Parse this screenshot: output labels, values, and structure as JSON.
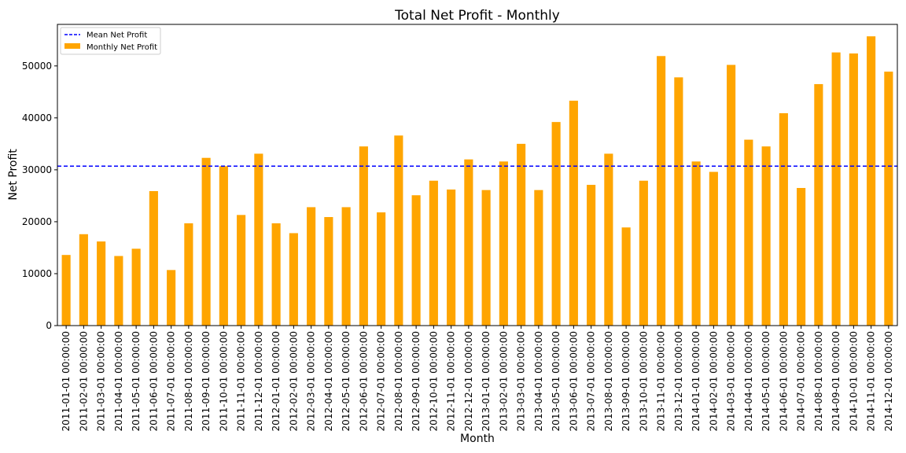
{
  "chart_data": {
    "type": "bar",
    "title": "Total Net Profit - Monthly",
    "xlabel": "Month",
    "ylabel": "Net Profit",
    "ylim": [
      0,
      58000
    ],
    "yticks": [
      0,
      10000,
      20000,
      30000,
      40000,
      50000
    ],
    "grid": false,
    "legend_position": "top-left",
    "categories": [
      "2011-01-01 00:00:00",
      "2011-02-01 00:00:00",
      "2011-03-01 00:00:00",
      "2011-04-01 00:00:00",
      "2011-05-01 00:00:00",
      "2011-06-01 00:00:00",
      "2011-07-01 00:00:00",
      "2011-08-01 00:00:00",
      "2011-09-01 00:00:00",
      "2011-10-01 00:00:00",
      "2011-11-01 00:00:00",
      "2011-12-01 00:00:00",
      "2012-01-01 00:00:00",
      "2012-02-01 00:00:00",
      "2012-03-01 00:00:00",
      "2012-04-01 00:00:00",
      "2012-05-01 00:00:00",
      "2012-06-01 00:00:00",
      "2012-07-01 00:00:00",
      "2012-08-01 00:00:00",
      "2012-09-01 00:00:00",
      "2012-10-01 00:00:00",
      "2012-11-01 00:00:00",
      "2012-12-01 00:00:00",
      "2013-01-01 00:00:00",
      "2013-02-01 00:00:00",
      "2013-03-01 00:00:00",
      "2013-04-01 00:00:00",
      "2013-05-01 00:00:00",
      "2013-06-01 00:00:00",
      "2013-07-01 00:00:00",
      "2013-08-01 00:00:00",
      "2013-09-01 00:00:00",
      "2013-10-01 00:00:00",
      "2013-11-01 00:00:00",
      "2013-12-01 00:00:00",
      "2014-01-01 00:00:00",
      "2014-02-01 00:00:00",
      "2014-03-01 00:00:00",
      "2014-04-01 00:00:00",
      "2014-05-01 00:00:00",
      "2014-06-01 00:00:00",
      "2014-07-01 00:00:00",
      "2014-08-01 00:00:00",
      "2014-09-01 00:00:00",
      "2014-10-01 00:00:00",
      "2014-11-01 00:00:00",
      "2014-12-01 00:00:00"
    ],
    "series": [
      {
        "name": "Monthly Net Profit",
        "type": "bar",
        "color": "#ffa500",
        "values": [
          13600,
          17600,
          16200,
          13400,
          14800,
          25900,
          10700,
          19700,
          32300,
          30700,
          21300,
          33100,
          19700,
          17800,
          22800,
          20900,
          22800,
          34500,
          21800,
          36600,
          25100,
          27900,
          26200,
          32000,
          26100,
          31600,
          35000,
          26100,
          39200,
          43300,
          27100,
          33100,
          18900,
          27900,
          51900,
          47800,
          31600,
          29600,
          50200,
          35800,
          34500,
          40900,
          26500,
          46500,
          52600,
          52400,
          55700,
          48900
        ]
      },
      {
        "name": "Mean Net Profit",
        "type": "hline",
        "color": "#0000ff",
        "value": 30700
      }
    ]
  }
}
